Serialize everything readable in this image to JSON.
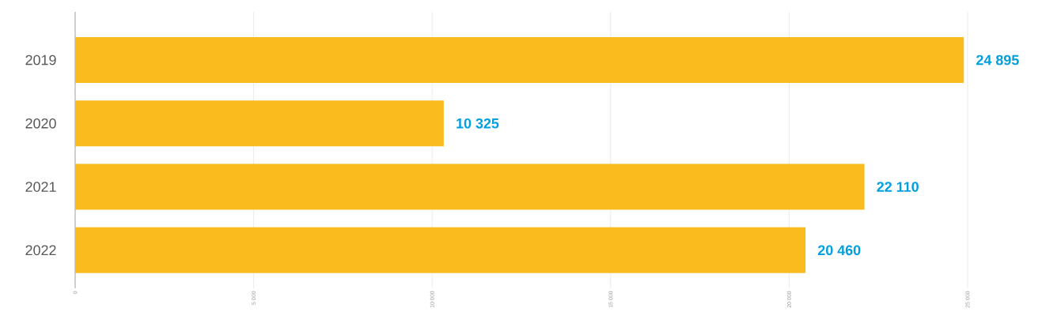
{
  "chart_data": {
    "type": "bar",
    "orientation": "horizontal",
    "categories": [
      "2019",
      "2020",
      "2021",
      "2022"
    ],
    "values": [
      24895,
      10325,
      22110,
      20460
    ],
    "value_labels": [
      "24 895",
      "10 325",
      "22 110",
      "20 460"
    ],
    "color": "#fabb1f",
    "xlim": [
      0,
      25000
    ],
    "xticks": [
      0,
      {
        "value": 5000,
        "label": "5 000"
      },
      {
        "value": 10000,
        "label": "10 000"
      },
      {
        "value": 15000,
        "label": "15 000"
      },
      {
        "value": 20000,
        "label": "20 000"
      },
      {
        "value": 25000,
        "label": "25 000"
      }
    ],
    "grid": "x"
  }
}
